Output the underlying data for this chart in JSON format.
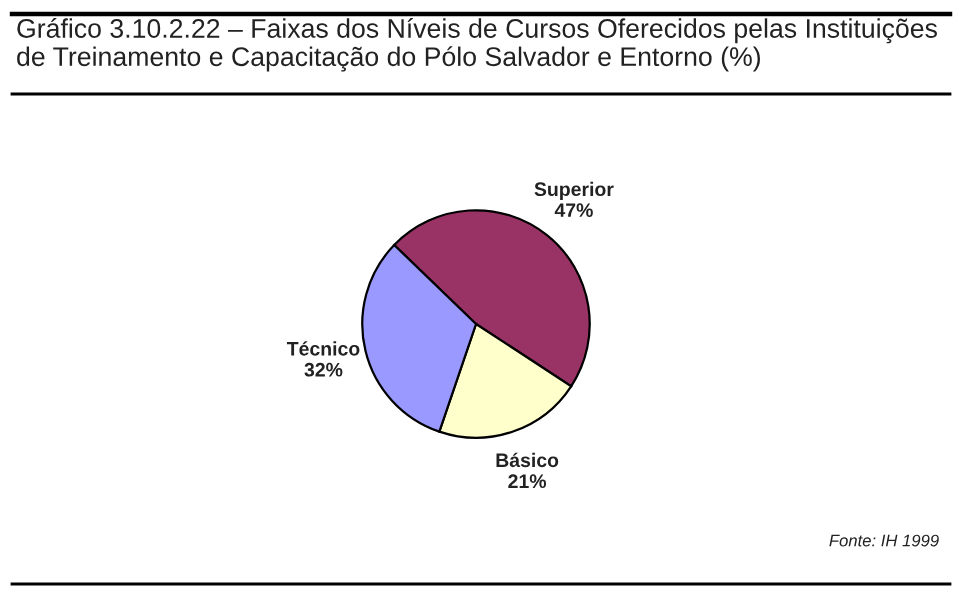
{
  "chart_data": {
    "type": "pie",
    "title": "Gráfico 3.10.2.22 – Faixas dos Níveis de Cursos Oferecidos pelas Instituições\nde Treinamento e Capacitação do Pólo Salvador e Entorno (%)",
    "categories": [
      "Superior",
      "Básico",
      "Técnico"
    ],
    "values": [
      47,
      21,
      32
    ],
    "value_labels": [
      "47%",
      "21%",
      "32%"
    ],
    "colors": [
      "#993366",
      "#ffffcc",
      "#9999ff"
    ],
    "annotations": [
      "Fonte: IH 1999"
    ]
  }
}
